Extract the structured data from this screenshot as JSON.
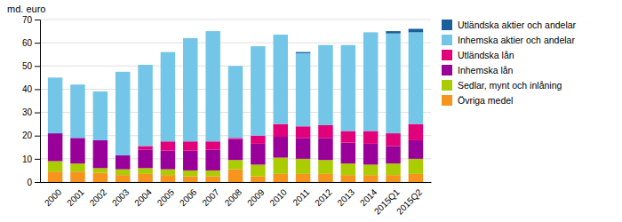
{
  "chart_data": {
    "type": "bar",
    "stacked": true,
    "ylabel": "md. euro",
    "categories": [
      "2000",
      "2001",
      "2002",
      "2003",
      "2004",
      "2005",
      "2006",
      "2007",
      "2008",
      "2009",
      "2010",
      "2011",
      "2012",
      "2013",
      "2014",
      "2015Q1",
      "2015Q2"
    ],
    "series": [
      {
        "name": "Övriga medel",
        "color": "#F7941D",
        "values": [
          4.5,
          4.5,
          4.0,
          3.0,
          3.5,
          3.0,
          2.5,
          2.5,
          5.5,
          2.5,
          3.5,
          3.5,
          3.5,
          3.0,
          3.0,
          3.0,
          3.5
        ]
      },
      {
        "name": "Sedlar, mynt och inlåning",
        "color": "#AACC00",
        "values": [
          4.5,
          3.5,
          2.0,
          2.5,
          2.5,
          2.5,
          2.5,
          2.5,
          4.0,
          5.0,
          7.0,
          6.5,
          6.0,
          5.0,
          4.5,
          5.0,
          6.5
        ]
      },
      {
        "name": "Inhemska lån",
        "color": "#990099",
        "values": [
          12.0,
          11.0,
          12.0,
          6.0,
          8.0,
          8.0,
          8.5,
          9.0,
          9.0,
          9.0,
          9.0,
          9.0,
          9.5,
          9.0,
          9.0,
          7.5,
          8.0
        ]
      },
      {
        "name": "Utländska lån",
        "color": "#E2007A",
        "values": [
          0.0,
          0.0,
          0.0,
          0.0,
          1.5,
          4.0,
          4.0,
          3.5,
          0.5,
          3.5,
          5.5,
          5.0,
          5.5,
          5.0,
          5.5,
          5.5,
          7.0
        ]
      },
      {
        "name": "Inhemska aktier och andelar",
        "color": "#73C6E7",
        "values": [
          24.0,
          23.0,
          21.0,
          36.0,
          35.0,
          38.5,
          44.5,
          47.5,
          31.0,
          38.5,
          38.5,
          31.5,
          34.5,
          37.0,
          42.5,
          43.0,
          39.5
        ]
      },
      {
        "name": "Utländska aktier och andelar",
        "color": "#1B5E9E",
        "values": [
          0.0,
          0.0,
          0.0,
          0.0,
          0.0,
          0.0,
          0.0,
          0.0,
          0.0,
          0.0,
          0.0,
          0.5,
          0.0,
          0.0,
          0.0,
          1.0,
          1.5
        ]
      }
    ],
    "ylim": [
      0,
      70
    ],
    "yticks": [
      0,
      10,
      20,
      30,
      40,
      50,
      60,
      70
    ],
    "grid": true,
    "legend": "right"
  }
}
